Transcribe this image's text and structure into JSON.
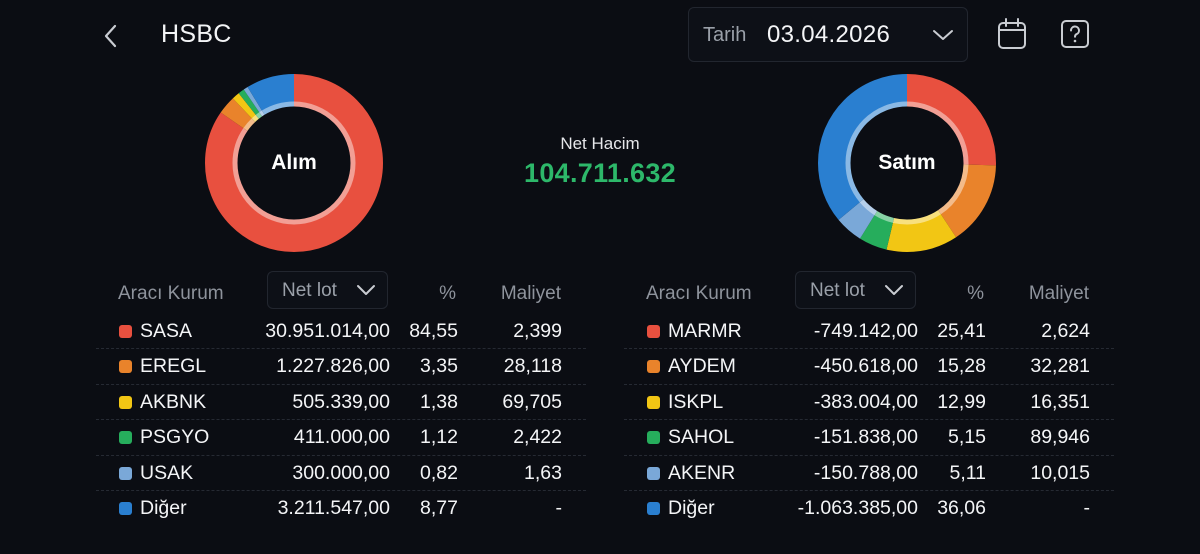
{
  "header": {
    "title": "HSBC",
    "date_label": "Tarih",
    "date_value": "03.04.2026"
  },
  "net_volume": {
    "label": "Net Hacim",
    "value": "104.711.632",
    "color": "#2db86a"
  },
  "colors": {
    "red": "#e8503f",
    "orange": "#e9832b",
    "yellow": "#f2c614",
    "green": "#26ad5c",
    "light_blue": "#7aa8d8",
    "blue": "#2a7fd0"
  },
  "buy": {
    "donut_label": "Alım",
    "columns": {
      "broker": "Aracı Kurum",
      "metric": "Net lot",
      "pct": "%",
      "cost": "Maliyet"
    },
    "rows": [
      {
        "name": "SASA",
        "lot": "30.951.014,00",
        "pct": "84,55",
        "cost": "2,399",
        "color": "#e8503f",
        "share": 84.55
      },
      {
        "name": "EREGL",
        "lot": "1.227.826,00",
        "pct": "3,35",
        "cost": "28,118",
        "color": "#e9832b",
        "share": 3.35
      },
      {
        "name": "AKBNK",
        "lot": "505.339,00",
        "pct": "1,38",
        "cost": "69,705",
        "color": "#f2c614",
        "share": 1.38
      },
      {
        "name": "PSGYO",
        "lot": "411.000,00",
        "pct": "1,12",
        "cost": "2,422",
        "color": "#26ad5c",
        "share": 1.12
      },
      {
        "name": "USAK",
        "lot": "300.000,00",
        "pct": "0,82",
        "cost": "1,63",
        "color": "#7aa8d8",
        "share": 0.82
      },
      {
        "name": "Diğer",
        "lot": "3.211.547,00",
        "pct": "8,77",
        "cost": "-",
        "color": "#2a7fd0",
        "share": 8.77
      }
    ]
  },
  "sell": {
    "donut_label": "Satım",
    "columns": {
      "broker": "Aracı Kurum",
      "metric": "Net lot",
      "pct": "%",
      "cost": "Maliyet"
    },
    "rows": [
      {
        "name": "MARMR",
        "lot": "-749.142,00",
        "pct": "25,41",
        "cost": "2,624",
        "color": "#e8503f",
        "share": 25.41
      },
      {
        "name": "AYDEM",
        "lot": "-450.618,00",
        "pct": "15,28",
        "cost": "32,281",
        "color": "#e9832b",
        "share": 15.28
      },
      {
        "name": "ISKPL",
        "lot": "-383.004,00",
        "pct": "12,99",
        "cost": "16,351",
        "color": "#f2c614",
        "share": 12.99
      },
      {
        "name": "SAHOL",
        "lot": "-151.838,00",
        "pct": "5,15",
        "cost": "89,946",
        "color": "#26ad5c",
        "share": 5.15
      },
      {
        "name": "AKENR",
        "lot": "-150.788,00",
        "pct": "5,11",
        "cost": "10,015",
        "color": "#7aa8d8",
        "share": 5.11
      },
      {
        "name": "Diğer",
        "lot": "-1.063.385,00",
        "pct": "36,06",
        "cost": "-",
        "color": "#2a7fd0",
        "share": 36.06
      }
    ]
  },
  "chart_data": [
    {
      "type": "pie",
      "title": "Alım",
      "categories": [
        "SASA",
        "EREGL",
        "AKBNK",
        "PSGYO",
        "USAK",
        "Diğer"
      ],
      "values": [
        84.55,
        3.35,
        1.38,
        1.12,
        0.82,
        8.77
      ],
      "colors": [
        "#e8503f",
        "#e9832b",
        "#f2c614",
        "#26ad5c",
        "#7aa8d8",
        "#2a7fd0"
      ]
    },
    {
      "type": "pie",
      "title": "Satım",
      "categories": [
        "MARMR",
        "AYDEM",
        "ISKPL",
        "SAHOL",
        "AKENR",
        "Diğer"
      ],
      "values": [
        25.41,
        15.28,
        12.99,
        5.15,
        5.11,
        36.06
      ],
      "colors": [
        "#e8503f",
        "#e9832b",
        "#f2c614",
        "#26ad5c",
        "#7aa8d8",
        "#2a7fd0"
      ]
    }
  ]
}
